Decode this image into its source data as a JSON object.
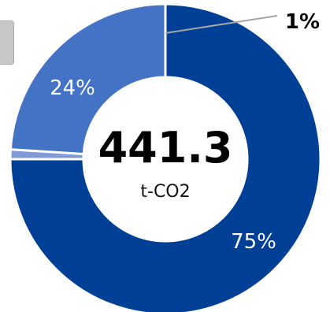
{
  "chart_data": {
    "type": "pie",
    "donut": true,
    "total_value": "441.3",
    "total_unit": "t-CO2",
    "slices": [
      {
        "label": "75%",
        "value": 75,
        "color": "#003f96"
      },
      {
        "label": "1%",
        "value": 1,
        "color": "#7f9ad6"
      },
      {
        "label": "24%",
        "value": 24,
        "color": "#4472c4"
      }
    ],
    "separator_color": "#ffffff",
    "leader_line_color": "#a6a6a6"
  }
}
